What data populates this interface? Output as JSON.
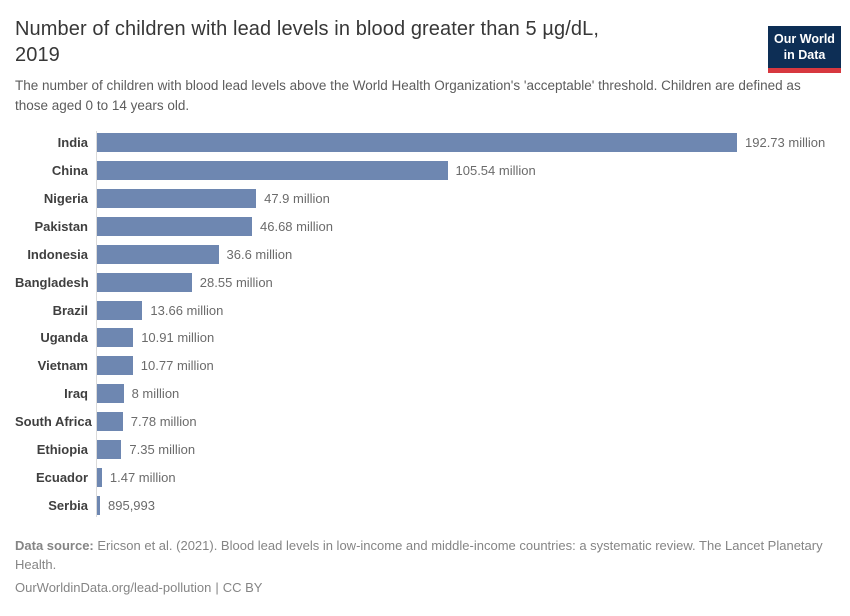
{
  "header": {
    "title_line1": "Number of children with lead levels in blood greater than 5 µg/dL,",
    "title_line2": "2019",
    "subtitle": "The number of children with blood lead levels above the World Health Organization's 'acceptable' threshold. Children are defined as those aged 0 to 14 years old."
  },
  "logo": {
    "line1": "Our World",
    "line2": "in Data",
    "bg_color": "#0d2e55",
    "stripe_color": "#d7383f"
  },
  "chart_data": {
    "type": "bar",
    "orientation": "horizontal",
    "title": "Number of children with lead levels in blood greater than 5 µg/dL, 2019",
    "categories": [
      "India",
      "China",
      "Nigeria",
      "Pakistan",
      "Indonesia",
      "Bangladesh",
      "Brazil",
      "Uganda",
      "Vietnam",
      "Iraq",
      "South Africa",
      "Ethiopia",
      "Ecuador",
      "Serbia"
    ],
    "values": [
      192.73,
      105.54,
      47.9,
      46.68,
      36.6,
      28.55,
      13.66,
      10.91,
      10.77,
      8,
      7.78,
      7.35,
      1.47,
      0.895993
    ],
    "values_unit": "million children",
    "value_labels": [
      "192.73 million",
      "105.54 million",
      "47.9 million",
      "46.68 million",
      "36.6 million",
      "28.55 million",
      "13.66 million",
      "10.91 million",
      "10.77 million",
      "8 million",
      "7.78 million",
      "7.35 million",
      "1.47 million",
      "895,993"
    ],
    "xlim": [
      0,
      192.73
    ],
    "grid": false,
    "legend": false,
    "bar_color": "#6e87b1"
  },
  "footer": {
    "source_label": "Data source:",
    "source_text": "Ericson et al. (2021). Blood lead levels in low-income and middle-income countries: a systematic review. The Lancet Planetary Health.",
    "link": "OurWorldinData.org/lead-pollution",
    "separator": "|",
    "license": "CC BY"
  }
}
